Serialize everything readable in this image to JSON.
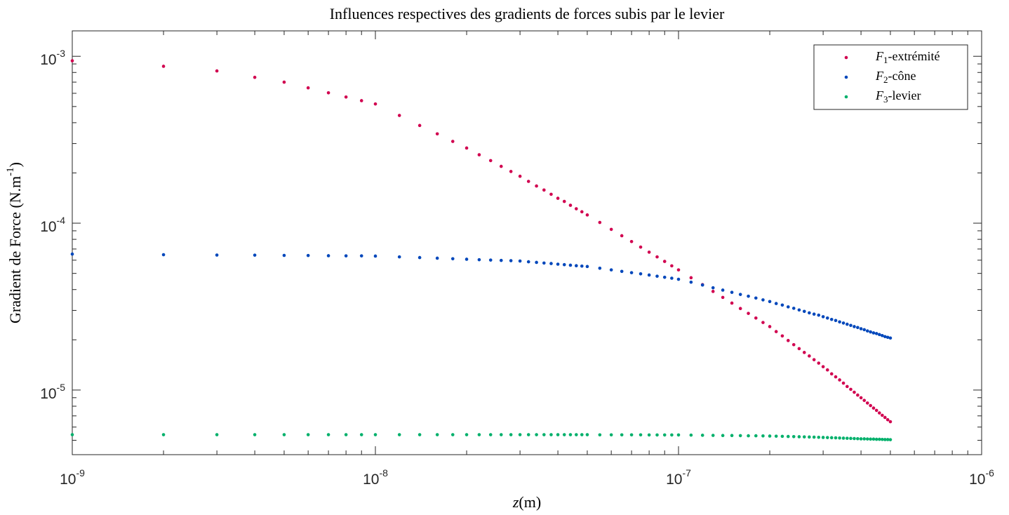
{
  "chart_data": {
    "type": "scatter",
    "title": "Influences respectives des gradients de forces subis par le levier",
    "xlabel": "z(m)",
    "ylabel": "Gradient de Force (N.m-1)",
    "xscale": "log",
    "yscale": "log",
    "grid": false,
    "legend": "northeast",
    "xlim": [
      1e-09,
      1e-06
    ],
    "ylim": [
      4.1e-06,
      0.00142
    ],
    "xticks": [
      {
        "value": 1e-09,
        "label": "10-9"
      },
      {
        "value": 1e-08,
        "label": "10-8"
      },
      {
        "value": 1e-07,
        "label": "10-7"
      },
      {
        "value": 1e-06,
        "label": "10-6"
      }
    ],
    "yticks": [
      {
        "value": 1e-05,
        "label": "10-5"
      },
      {
        "value": 0.0001,
        "label": "10-4"
      },
      {
        "value": 0.001,
        "label": "10-3"
      }
    ],
    "x": [
      1e-09,
      2e-09,
      3e-09,
      4e-09,
      5e-09,
      6e-09,
      7e-09,
      8e-09,
      9e-09,
      1e-08,
      1.2e-08,
      1.4e-08,
      1.6e-08,
      1.8e-08,
      2e-08,
      2.2e-08,
      2.4e-08,
      2.6e-08,
      2.8e-08,
      3e-08,
      3.2e-08,
      3.4e-08,
      3.6e-08,
      3.8e-08,
      4e-08,
      4.2e-08,
      4.4e-08,
      4.6e-08,
      4.8e-08,
      5e-08,
      5.5e-08,
      6e-08,
      6.5e-08,
      7e-08,
      7.5e-08,
      8e-08,
      8.5e-08,
      9e-08,
      9.5e-08,
      1e-07,
      1.1e-07,
      1.2e-07,
      1.3e-07,
      1.4e-07,
      1.5e-07,
      1.6e-07,
      1.7e-07,
      1.8e-07,
      1.9e-07,
      2e-07,
      2.1e-07,
      2.2e-07,
      2.3e-07,
      2.4e-07,
      2.5e-07,
      2.6e-07,
      2.7e-07,
      2.8e-07,
      2.9e-07,
      3e-07,
      3.1e-07,
      3.2e-07,
      3.3e-07,
      3.4e-07,
      3.5e-07,
      3.6e-07,
      3.7e-07,
      3.8e-07,
      3.9e-07,
      4e-07,
      4.1e-07,
      4.2e-07,
      4.3e-07,
      4.4e-07,
      4.5e-07,
      4.6e-07,
      4.7e-07,
      4.8e-07,
      4.9e-07,
      5e-07
    ],
    "series": [
      {
        "name": "F1-extrémité",
        "color": "#d1004f",
        "values": [
          0.00094,
          0.000871,
          0.000817,
          0.000748,
          0.0007,
          0.000647,
          0.000604,
          0.00057,
          0.000542,
          0.000518,
          0.000442,
          0.000385,
          0.000343,
          0.000309,
          0.000282,
          0.000257,
          0.000237,
          0.000219,
          0.000204,
          0.000191,
          0.000178,
          0.000167,
          0.000158,
          0.000149,
          0.000141,
          0.000135,
          0.000128,
          0.000122,
          0.000117,
          0.000112,
          0.000101,
          9.18e-05,
          8.41e-05,
          7.76e-05,
          7.19e-05,
          6.7e-05,
          6.28e-05,
          5.9e-05,
          5.55e-05,
          5.25e-05,
          4.71e-05,
          4.28e-05,
          3.9e-05,
          3.59e-05,
          3.32e-05,
          3.08e-05,
          2.88e-05,
          2.7e-05,
          2.54e-05,
          2.4e-05,
          2.24e-05,
          2.11e-05,
          1.98e-05,
          1.87e-05,
          1.77e-05,
          1.68e-05,
          1.6e-05,
          1.52e-05,
          1.45e-05,
          1.38e-05,
          1.32e-05,
          1.25e-05,
          1.2e-05,
          1.15e-05,
          1.1e-05,
          1.05e-05,
          1.01e-05,
          9.7e-06,
          9.33e-06,
          8.99e-06,
          8.67e-06,
          8.36e-06,
          8.07e-06,
          7.8e-06,
          7.55e-06,
          7.29e-06,
          7.06e-06,
          6.85e-06,
          6.64e-06,
          6.46e-06
        ]
      },
      {
        "name": "F2-cône",
        "color": "#0047bb",
        "values": [
          6.53e-05,
          6.47e-05,
          6.44e-05,
          6.43e-05,
          6.41e-05,
          6.4e-05,
          6.38e-05,
          6.37e-05,
          6.37e-05,
          6.35e-05,
          6.28e-05,
          6.22e-05,
          6.17e-05,
          6.12e-05,
          6.08e-05,
          6.04e-05,
          6.01e-05,
          5.98e-05,
          5.96e-05,
          5.93e-05,
          5.87e-05,
          5.82e-05,
          5.77e-05,
          5.73e-05,
          5.68e-05,
          5.64e-05,
          5.6e-05,
          5.56e-05,
          5.53e-05,
          5.5e-05,
          5.37e-05,
          5.25e-05,
          5.14e-05,
          5.05e-05,
          4.97e-05,
          4.89e-05,
          4.81e-05,
          4.74e-05,
          4.68e-05,
          4.61e-05,
          4.43e-05,
          4.26e-05,
          4.1e-05,
          3.97e-05,
          3.85e-05,
          3.74e-05,
          3.65e-05,
          3.56e-05,
          3.47e-05,
          3.39e-05,
          3.3e-05,
          3.23e-05,
          3.15e-05,
          3.09e-05,
          3.02e-05,
          2.96e-05,
          2.9e-05,
          2.85e-05,
          2.81e-05,
          2.75e-05,
          2.7e-05,
          2.65e-05,
          2.61e-05,
          2.56e-05,
          2.52e-05,
          2.48e-05,
          2.44e-05,
          2.4e-05,
          2.37e-05,
          2.33e-05,
          2.3e-05,
          2.26e-05,
          2.23e-05,
          2.2e-05,
          2.18e-05,
          2.15e-05,
          2.12e-05,
          2.09e-05,
          2.07e-05,
          2.05e-05
        ]
      },
      {
        "name": "F3-levier",
        "color": "#00b06b",
        "values": [
          5.4e-06,
          5.4e-06,
          5.4e-06,
          5.4e-06,
          5.4e-06,
          5.4e-06,
          5.4e-06,
          5.4e-06,
          5.4e-06,
          5.4e-06,
          5.4e-06,
          5.4e-06,
          5.4e-06,
          5.4e-06,
          5.4e-06,
          5.4e-06,
          5.4e-06,
          5.4e-06,
          5.4e-06,
          5.4e-06,
          5.4e-06,
          5.4e-06,
          5.4e-06,
          5.4e-06,
          5.4e-06,
          5.4e-06,
          5.4e-06,
          5.4e-06,
          5.4e-06,
          5.4e-06,
          5.39e-06,
          5.39e-06,
          5.39e-06,
          5.39e-06,
          5.39e-06,
          5.38e-06,
          5.38e-06,
          5.38e-06,
          5.38e-06,
          5.38e-06,
          5.37e-06,
          5.36e-06,
          5.35e-06,
          5.34e-06,
          5.34e-06,
          5.33e-06,
          5.32e-06,
          5.32e-06,
          5.31e-06,
          5.3e-06,
          5.29e-06,
          5.28e-06,
          5.27e-06,
          5.26e-06,
          5.25e-06,
          5.24e-06,
          5.23e-06,
          5.22e-06,
          5.21e-06,
          5.2e-06,
          5.19e-06,
          5.18e-06,
          5.17e-06,
          5.16e-06,
          5.15e-06,
          5.14e-06,
          5.13e-06,
          5.12e-06,
          5.11e-06,
          5.1e-06,
          5.1e-06,
          5.09e-06,
          5.08e-06,
          5.08e-06,
          5.07e-06,
          5.07e-06,
          5.06e-06,
          5.05e-06,
          5.05e-06,
          5.04e-06
        ]
      }
    ]
  }
}
